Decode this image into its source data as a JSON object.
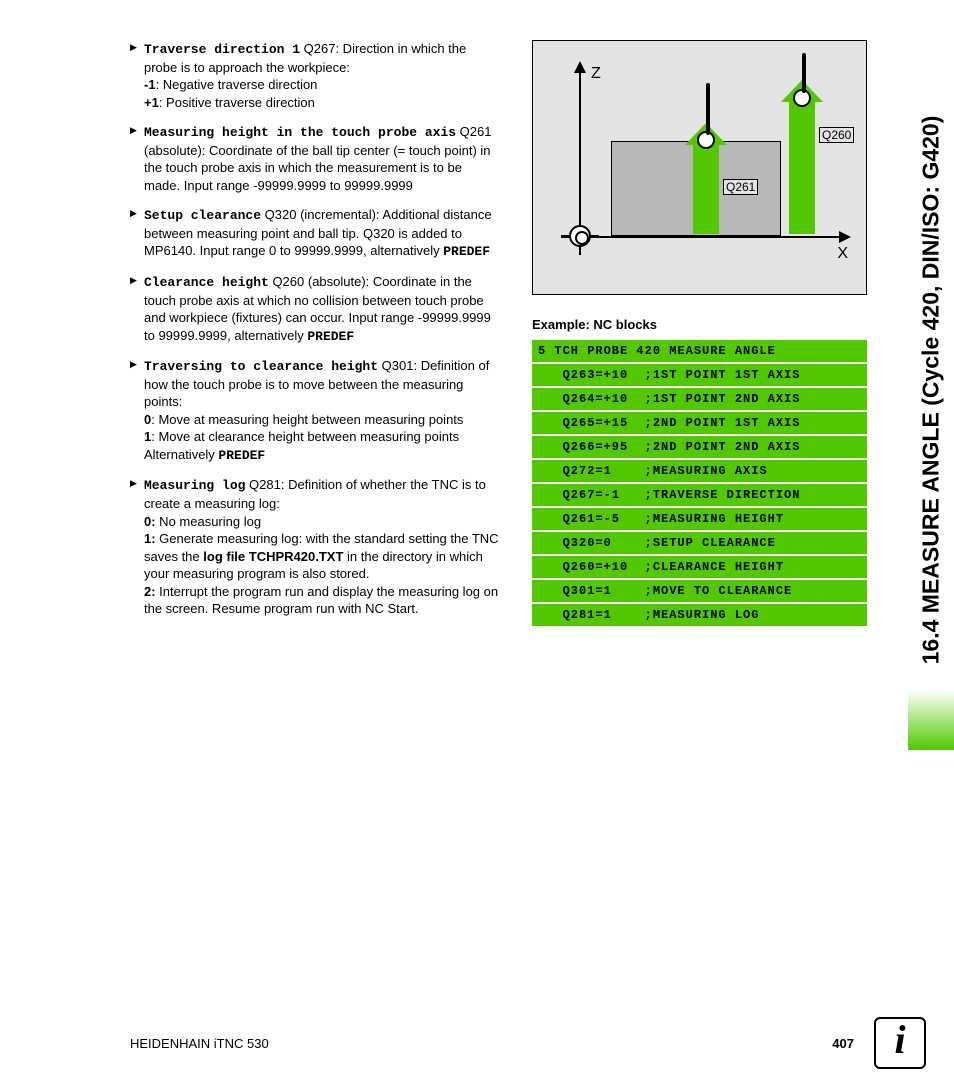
{
  "side_tab": "16.4 MEASURE ANGLE (Cycle 420, DIN/ISO: G420)",
  "footer": {
    "left": "HEIDENHAIN iTNC 530",
    "page": "407"
  },
  "info_icon_glyph": "i",
  "diagram": {
    "axis_v": "Z",
    "axis_h": "X",
    "label_q261": "Q261",
    "label_q260": "Q260",
    "arrow_color": "#52c800",
    "block_color": "#b8b8b8",
    "bg": "#e4e4e4"
  },
  "params": [
    {
      "term": "Traverse direction 1",
      "code": " Q267",
      "body1": ": Direction in which the probe is to approach the workpiece:",
      "minus": "-1",
      "minus_txt": ": Negative traverse direction",
      "plus": "+1",
      "plus_txt": ": Positive traverse direction"
    },
    {
      "term": "Measuring height in the touch probe axis",
      "code": " Q261",
      "body": " (absolute): Coordinate of the ball tip center (= touch point) in the touch probe axis in which the measurement is to be made. Input range -99999.9999 to 99999.9999"
    },
    {
      "term": "Setup clearance",
      "code": " Q320",
      "body": " (incremental): Additional distance between measuring point and ball tip. Q320 is added to MP6140. Input range 0 to 99999.9999, alternatively ",
      "alt": "PREDEF"
    },
    {
      "term": "Clearance height",
      "code": " Q260",
      "body": " (absolute): Coordinate in the touch probe axis at which no collision between touch probe and workpiece (fixtures) can occur. Input range -99999.9999 to 99999.9999, alternatively ",
      "alt": "PREDEF"
    },
    {
      "term": "Traversing to clearance height",
      "code": " Q301",
      "body1": ": Definition of how the touch probe is to move between the measuring points:",
      "z": "0",
      "z_txt": ": Move at measuring height between measuring points",
      "o": "1",
      "o_txt": ": Move at clearance height between measuring points",
      "alt_pre": "Alternatively ",
      "alt": "PREDEF"
    },
    {
      "term": "Measuring log",
      "code": " Q281",
      "body1": ": Definition of whether the TNC is to create a measuring log:",
      "z": "0:",
      "z_txt": " No measuring log",
      "o": "1:",
      "o_txt_a": " Generate measuring log: with the standard setting the TNC saves the ",
      "o_file": "log file TCHPR420.TXT",
      "o_txt_b": " in the directory in which your measuring program is also stored.",
      "t": "2:",
      "t_txt": " Interrupt the program run and display the measuring log on the screen. Resume program run with NC Start."
    }
  ],
  "example_title": "Example: NC blocks",
  "nc": [
    "5 TCH PROBE 420 MEASURE ANGLE",
    "   Q263=+10  ;1ST POINT 1ST AXIS",
    "   Q264=+10  ;1ST POINT 2ND AXIS",
    "   Q265=+15  ;2ND POINT 1ST AXIS",
    "   Q266=+95  ;2ND POINT 2ND AXIS",
    "   Q272=1    ;MEASURING AXIS",
    "   Q267=-1   ;TRAVERSE DIRECTION",
    "   Q261=-5   ;MEASURING HEIGHT",
    "   Q320=0    ;SETUP CLEARANCE",
    "   Q260=+10  ;CLEARANCE HEIGHT",
    "   Q301=1    ;MOVE TO CLEARANCE",
    "   Q281=1    ;MEASURING LOG"
  ],
  "colors": {
    "green": "#52c800"
  }
}
